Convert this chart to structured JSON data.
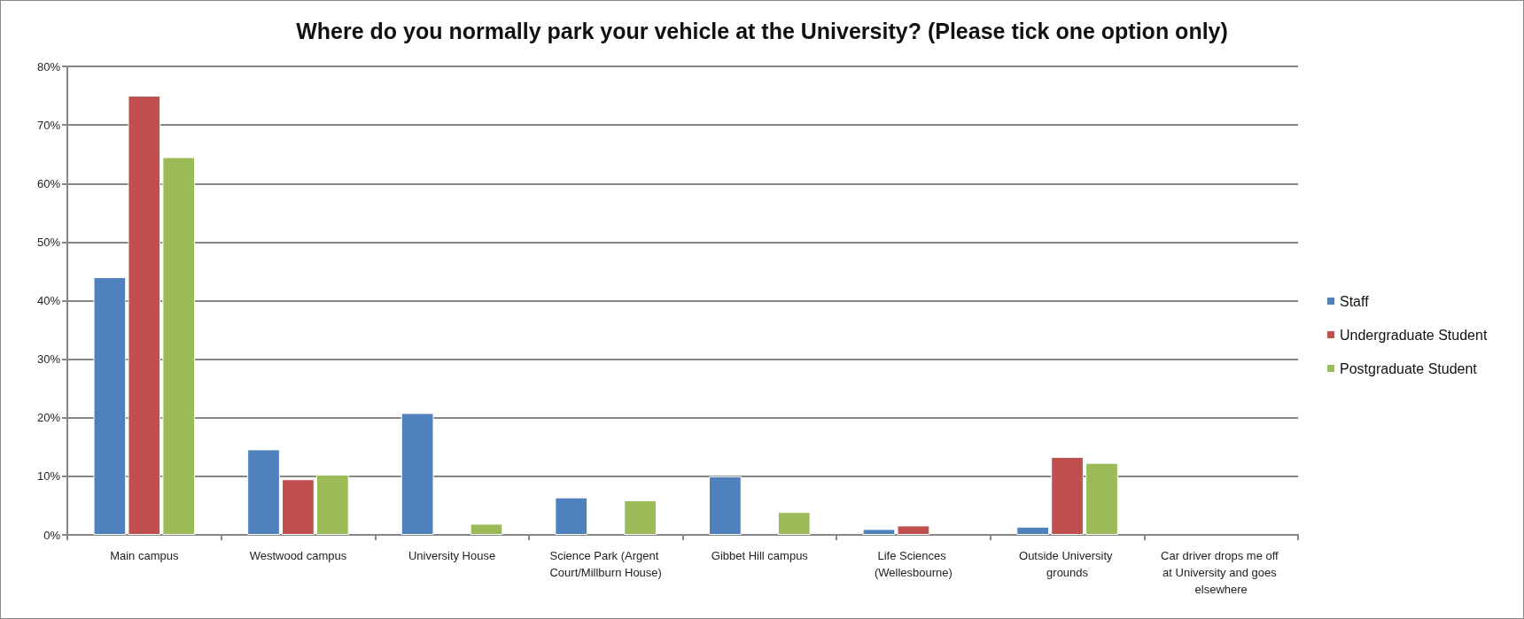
{
  "chart_data": {
    "type": "bar",
    "title": "Where do you normally park your vehicle at the University? (Please tick one option only)",
    "categories": [
      "Main campus",
      "Westwood campus",
      "University House",
      "Science Park (Argent Court/Millburn House)",
      "Gibbet Hill campus",
      "Life Sciences (Wellesbourne)",
      "Outside University grounds",
      "Car driver drops me off at University and goes elsewhere"
    ],
    "series": [
      {
        "name": "Staff",
        "color": "#4f81bd",
        "values": [
          44,
          14.6,
          20.8,
          6.4,
          10,
          1,
          1.4,
          0
        ]
      },
      {
        "name": "Undergraduate Student",
        "color": "#c0504d",
        "values": [
          75,
          9.5,
          0,
          0,
          0,
          1.6,
          13.3,
          0
        ]
      },
      {
        "name": "Postgraduate Student",
        "color": "#9bbb59",
        "values": [
          64.5,
          10.3,
          1.9,
          5.9,
          3.9,
          0,
          12.3,
          0
        ]
      }
    ],
    "ylim": [
      0,
      80
    ],
    "yticks": [
      {
        "value": 0,
        "label": "0%"
      },
      {
        "value": 10,
        "label": "10%"
      },
      {
        "value": 20,
        "label": "20%"
      },
      {
        "value": 30,
        "label": "30%"
      },
      {
        "value": 40,
        "label": "40%"
      },
      {
        "value": 50,
        "label": "50%"
      },
      {
        "value": 60,
        "label": "60%"
      },
      {
        "value": 70,
        "label": "70%"
      },
      {
        "value": 80,
        "label": "80%"
      }
    ],
    "grid": "y",
    "legend": "right"
  }
}
